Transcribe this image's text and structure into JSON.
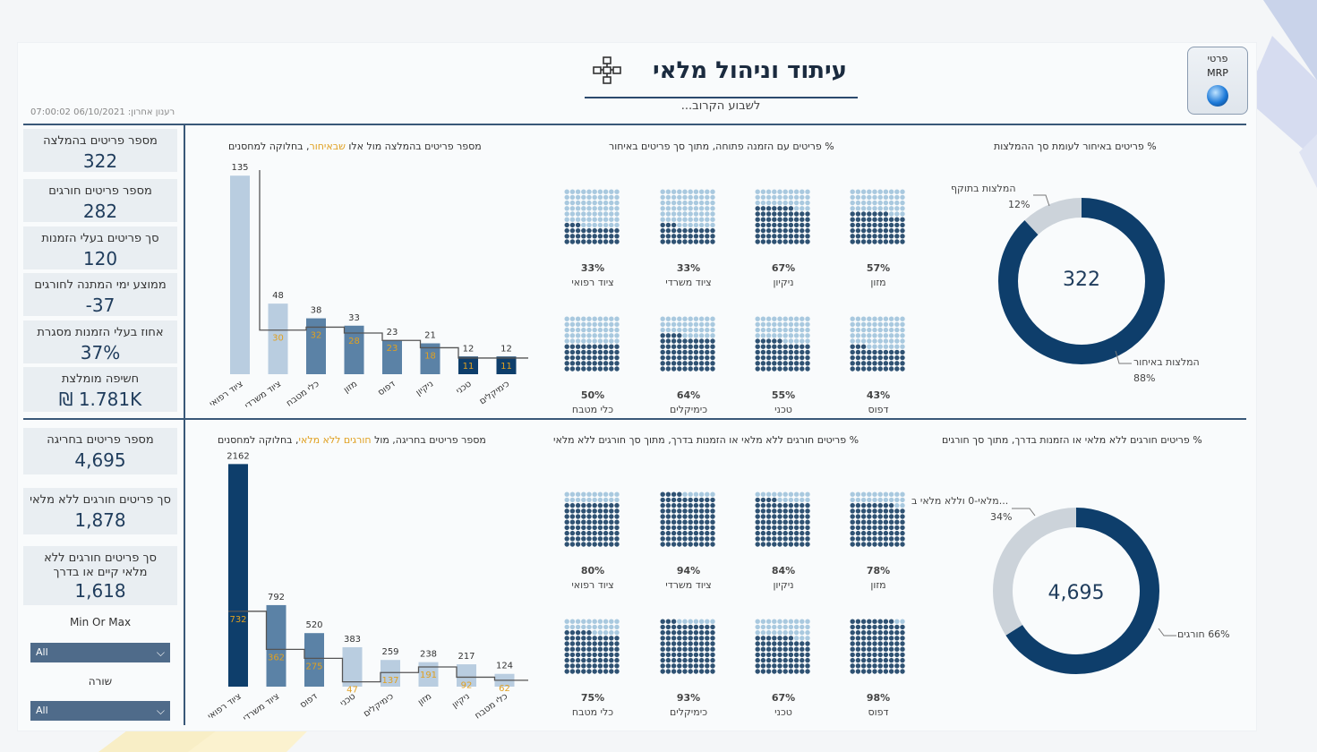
{
  "header": {
    "title": "עיתוד וניהול מלאי",
    "subtitle": "לשבוע הקרוב...",
    "mrp_line1": "פרטי",
    "mrp_line2": "MRP",
    "updated": "רענון אחרון: 06/10/2021 07:00:02"
  },
  "kpis_top": [
    {
      "label": "מספר פריטים בהמלצה",
      "value": "322"
    },
    {
      "label": "מספר פריטים חורגים",
      "value": "282"
    },
    {
      "label": "סך פריטים בעלי הזמנות",
      "value": "120"
    },
    {
      "label": "ממוצע ימי המתנה לחורגים",
      "value": "-37"
    },
    {
      "label": "אחוז בעלי הזמנות מסגרת",
      "value": "37%"
    },
    {
      "label": "חשיפה מומלצת",
      "value": "₪ 1.781K"
    }
  ],
  "kpis_bottom": [
    {
      "label": "מספר פריטים בחריגה",
      "value": "4,695"
    },
    {
      "label": "סך פריטים חורגים ללא מלאי",
      "value": "1,878"
    },
    {
      "label_line1": "סך פריטים חורגים ללא",
      "label_line2": "מלאי קיים או בדרך",
      "value": "1,618"
    }
  ],
  "filters": {
    "f1_label": "Min Or Max",
    "f1_value": "All",
    "f2_label": "שורה",
    "f2_value": "All"
  },
  "colors": {
    "dark": "#0e3e6b",
    "mid": "#5b82a6",
    "light": "#b9cde0",
    "waffle_dark": "#2f5273",
    "waffle_light": "#a9c9df",
    "grey": "#ccd3da",
    "highlight": "#e0a020"
  },
  "top_bar": {
    "title_pre": "מספר פריטים בהמלצה מול אלו",
    "title_hl": "שבאיחור",
    "title_post": ", בחלוקה למחסנים",
    "chart_data": {
      "type": "bar",
      "categories": [
        "ציוד רפואי",
        "ציוד משרדי",
        "כלי מטבח",
        "מזון",
        "דפוס",
        "ניקיון",
        "טכני",
        "כימיקלים"
      ],
      "series": [
        {
          "values": [
            135,
            48,
            38,
            33,
            23,
            21,
            12,
            12
          ]
        },
        {
          "values": [
            null,
            30,
            32,
            28,
            23,
            18,
            11,
            11
          ]
        }
      ],
      "ylim": [
        0,
        140
      ]
    }
  },
  "bottom_bar": {
    "title_pre": "מספר פריטים בחריגה, מול",
    "title_hl": "חורגים ללא מלאי",
    "title_post": ", בחלוקה למחסנים",
    "chart_data": {
      "type": "bar",
      "categories": [
        "ציוד רפואי",
        "ציוד משרדי",
        "דפוס",
        "טכני",
        "כימיקלים",
        "מזון",
        "ניקיון",
        "כלי מטבח"
      ],
      "series": [
        {
          "values": [
            2162,
            792,
            520,
            383,
            259,
            238,
            217,
            124
          ]
        },
        {
          "values": [
            732,
            362,
            275,
            47,
            137,
            191,
            92,
            62
          ]
        }
      ],
      "ylim": [
        0,
        2200
      ]
    }
  },
  "top_waffle": {
    "title": "% פריטים עם הזמנה פתוחה, מתוך סך פריטים באיחור",
    "chart_data": {
      "type": "waffle",
      "items": [
        {
          "label": "מזון",
          "pct": "57%",
          "value": 57
        },
        {
          "label": "ניקיון",
          "pct": "67%",
          "value": 67
        },
        {
          "label": "ציוד משרדי",
          "pct": "33%",
          "value": 33
        },
        {
          "label": "ציוד רפואי",
          "pct": "33%",
          "value": 33
        },
        {
          "label": "דפוס",
          "pct": "43%",
          "value": 43
        },
        {
          "label": "טכני",
          "pct": "55%",
          "value": 55
        },
        {
          "label": "כימיקלים",
          "pct": "64%",
          "value": 64
        },
        {
          "label": "כלי מטבח",
          "pct": "50%",
          "value": 50
        }
      ]
    }
  },
  "bottom_waffle": {
    "title": "% פריטים חורגים ללא מלאי או הזמנות בדרך, מתוך סך חורגים ללא מלאי",
    "chart_data": {
      "type": "waffle",
      "items": [
        {
          "label": "מזון",
          "pct": "78%",
          "value": 78
        },
        {
          "label": "ניקיון",
          "pct": "84%",
          "value": 84
        },
        {
          "label": "ציוד משרדי",
          "pct": "94%",
          "value": 94
        },
        {
          "label": "ציוד רפואי",
          "pct": "80%",
          "value": 80
        },
        {
          "label": "דפוס",
          "pct": "98%",
          "value": 98
        },
        {
          "label": "טכני",
          "pct": "67%",
          "value": 67
        },
        {
          "label": "כימיקלים",
          "pct": "93%",
          "value": 93
        },
        {
          "label": "כלי מטבח",
          "pct": "75%",
          "value": 75
        }
      ]
    }
  },
  "top_donut": {
    "title": "% פריטים באיחור לעומת סך ההמלצות",
    "center": "322",
    "chart_data": {
      "type": "pie",
      "slices": [
        {
          "label": "המלצות באיחור",
          "pct": "88%",
          "value": 88
        },
        {
          "label": "המלצות בתוקף",
          "pct": "12%",
          "value": 12
        }
      ]
    }
  },
  "bottom_donut": {
    "title": "% פריטים חורגים ללא מלאי או הזמנות בדרך, מתוך סך חורגים",
    "center": "4,695",
    "chart_data": {
      "type": "pie",
      "slices": [
        {
          "label": "66% חורגים",
          "pct": "",
          "value": 66
        },
        {
          "label": "...מלאי-0 וללא מלאי ב",
          "pct": "34%",
          "value": 34
        }
      ]
    }
  }
}
